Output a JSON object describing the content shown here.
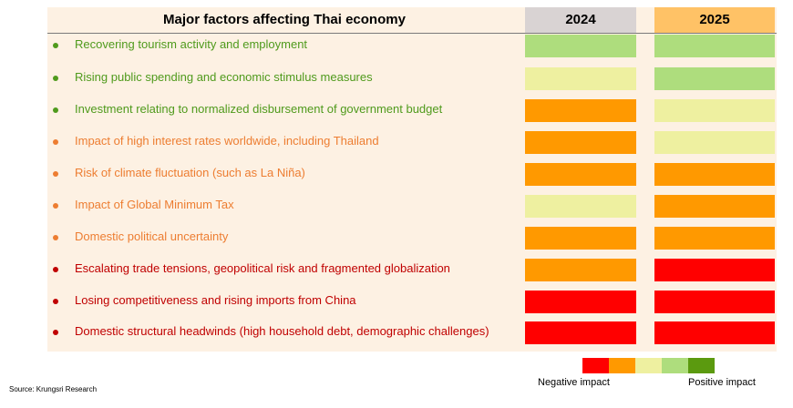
{
  "header": {
    "title": "Major factors affecting Thai economy",
    "years": [
      "2024",
      "2025"
    ]
  },
  "scale_colors": {
    "negative_strong": "#ff0000",
    "negative": "#ff9900",
    "neutral": "#eef0a0",
    "positive": "#aedd7d",
    "positive_strong": "#5b9a0f"
  },
  "group_colors": {
    "positive": "#4f9a1c",
    "moderate": "#ed7d31",
    "negative": "#c00000"
  },
  "chart_data": {
    "type": "table",
    "title": "Major factors affecting Thai economy",
    "columns": [
      "2024",
      "2025"
    ],
    "rows": [
      {
        "label": "Recovering tourism activity and employment",
        "group": "positive",
        "values": [
          "positive",
          "positive"
        ]
      },
      {
        "label": "Rising public spending and economic stimulus measures",
        "group": "positive",
        "values": [
          "neutral",
          "positive"
        ]
      },
      {
        "label": "Investment relating to normalized disbursement of government budget",
        "group": "positive",
        "values": [
          "negative",
          "neutral"
        ]
      },
      {
        "label": "Impact of high interest rates worldwide, including Thailand",
        "group": "moderate",
        "values": [
          "negative",
          "neutral"
        ]
      },
      {
        "label": "Risk of climate fluctuation (such as La Niña)",
        "group": "moderate",
        "values": [
          "negative",
          "negative"
        ]
      },
      {
        "label": "Impact of Global Minimum Tax",
        "group": "moderate",
        "values": [
          "neutral",
          "negative"
        ]
      },
      {
        "label": "Domestic political uncertainty",
        "group": "moderate",
        "values": [
          "negative",
          "negative"
        ]
      },
      {
        "label": "Escalating trade tensions, geopolitical risk and fragmented globalization",
        "group": "negative",
        "values": [
          "negative",
          "negative_strong"
        ]
      },
      {
        "label": "Losing competitiveness and rising imports from China",
        "group": "negative",
        "values": [
          "negative_strong",
          "negative_strong"
        ]
      },
      {
        "label": "Domestic structural headwinds (high household debt, demographic challenges)",
        "group": "negative",
        "values": [
          "negative_strong",
          "negative_strong"
        ]
      }
    ],
    "legend": {
      "scale": [
        "negative_strong",
        "negative",
        "neutral",
        "positive",
        "positive_strong"
      ],
      "left_label": "Negative impact",
      "right_label": "Positive impact"
    }
  },
  "footer": {
    "source": "Source: Krungsri Research"
  }
}
